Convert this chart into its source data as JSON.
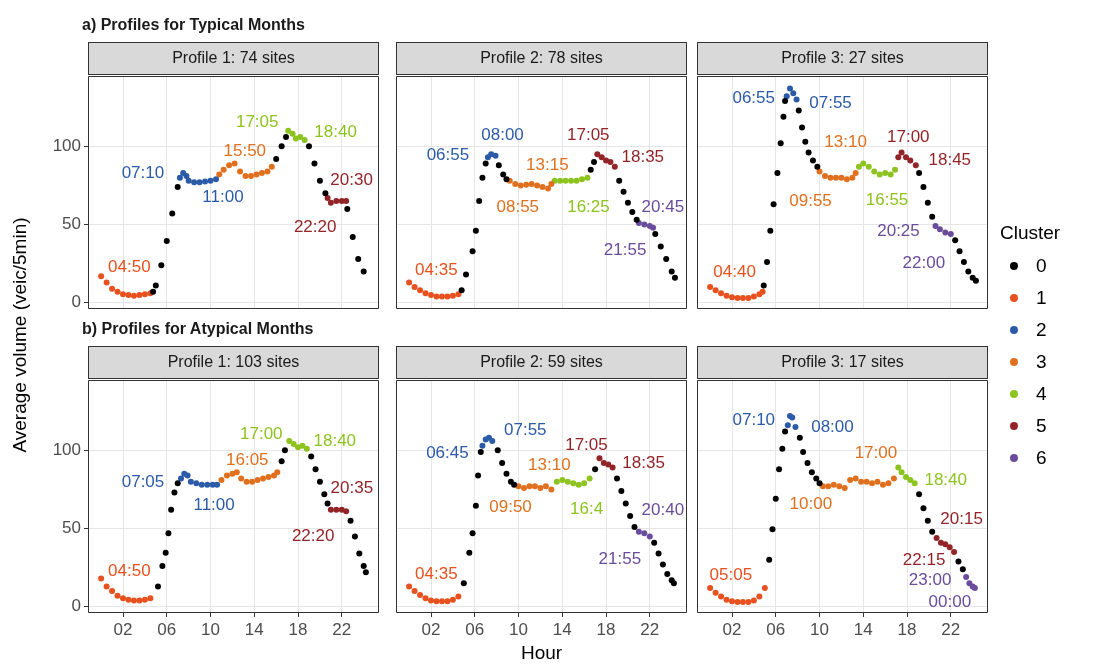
{
  "chart_data": [
    {
      "type": "scatter",
      "title": "Profile 1: 74 sites",
      "ylabel": "Average volume (veic/5min)",
      "annotations": [
        "a) Profiles for Typical Months",
        {
          "text": "04:50",
          "x": 4.5,
          "y": 6
        },
        {
          "text": "07:10",
          "x": 7.2,
          "y": 80
        },
        {
          "text": "11:00",
          "x": 10.5,
          "y": 79
        },
        {
          "text": "15:50",
          "x": 15.6,
          "y": 87
        },
        {
          "text": "17:05",
          "x": 17.1,
          "y": 110
        },
        {
          "text": "18:40",
          "x": 18.6,
          "y": 104
        },
        {
          "text": "20:30",
          "x": 20.7,
          "y": 67
        },
        {
          "text": "22:20",
          "x": 22.4,
          "y": 65
        }
      ],
      "xlim": [
        -1.2,
        25.4
      ],
      "ylim": [
        -4,
        145
      ],
      "xticks": [
        {
          "value": 2,
          "label": null
        },
        {
          "value": 6,
          "label": null
        },
        {
          "value": 10,
          "label": null
        },
        {
          "value": 14,
          "label": null
        },
        {
          "value": 18,
          "label": null
        },
        {
          "value": 22,
          "label": null
        }
      ],
      "yticks": [
        0,
        50,
        100
      ],
      "grid": true,
      "marker": "circle",
      "tick_labels": "y",
      "series": [
        {
          "color": "#000000",
          "x": [
            4.75,
            5,
            5.5,
            6,
            6.5,
            7,
            16,
            16.5,
            16.9,
            19,
            19.5,
            20,
            20.5,
            22.5,
            23,
            23.5,
            24
          ],
          "values": [
            7,
            11,
            24,
            39.5,
            57,
            74,
            92,
            100,
            106,
            100,
            89,
            78,
            70,
            60,
            42,
            28,
            20
          ]
        },
        {
          "color": "#e8501e",
          "x": [
            0,
            0.5,
            1,
            1.5,
            2,
            2.5,
            3,
            3.5,
            4,
            4.5
          ],
          "values": [
            17,
            13,
            9,
            7,
            5.5,
            5,
            4.5,
            5,
            5.5,
            6
          ]
        },
        {
          "color": "#2b5ba8",
          "x": [
            7.2,
            7.5,
            7.8,
            8,
            8.5,
            9,
            9.5,
            10,
            10.5
          ],
          "values": [
            80,
            83,
            81,
            78,
            77,
            77,
            77.5,
            78,
            79
          ]
        },
        {
          "color": "#e0701e",
          "x": [
            10.8,
            11.2,
            11.7,
            12.2,
            12.7,
            13.2,
            13.7,
            14.2,
            14.7,
            15.2,
            15.6
          ],
          "values": [
            82,
            85,
            88,
            89,
            84,
            81,
            81,
            82,
            83,
            84,
            87
          ]
        },
        {
          "color": "#8cc31e",
          "x": [
            17.1,
            17.5,
            17.8,
            18.2,
            18.6
          ],
          "values": [
            110,
            108,
            105,
            106,
            104
          ]
        },
        {
          "color": "#922428",
          "x": [
            20.7,
            21,
            21.5,
            22,
            22.4
          ],
          "values": [
            67,
            64,
            65,
            65,
            65
          ]
        }
      ]
    },
    {
      "type": "scatter",
      "title": "Profile 2: 78 sites",
      "annotations": [
        {
          "text": "04:35",
          "x": 4.5,
          "y": 5.5
        },
        {
          "text": "06:55",
          "x": 7.2,
          "y": 93
        },
        {
          "text": "08:00",
          "x": 7.9,
          "y": 94
        },
        {
          "text": "13:15",
          "x": 13,
          "y": 76
        },
        {
          "text": "08:55",
          "x": 9.2,
          "y": 78
        },
        {
          "text": "17:05",
          "x": 17.2,
          "y": 95
        },
        {
          "text": "18:35",
          "x": 18.8,
          "y": 87
        },
        {
          "text": "16:25",
          "x": 16.3,
          "y": 80
        },
        {
          "text": "20:45",
          "x": 21,
          "y": 51
        },
        {
          "text": "21:55",
          "x": 22.3,
          "y": 48
        }
      ],
      "xlim": [
        -1.2,
        25.4
      ],
      "ylim": [
        -4,
        145
      ],
      "xticks": [
        {
          "value": 2,
          "label": null
        },
        {
          "value": 6,
          "label": null
        },
        {
          "value": 10,
          "label": null
        },
        {
          "value": 14,
          "label": null
        },
        {
          "value": 18,
          "label": null
        },
        {
          "value": 22,
          "label": null
        }
      ],
      "yticks": [
        0,
        50,
        100
      ],
      "grid": true,
      "marker": "circle",
      "tick_labels": false,
      "series": [
        {
          "color": "#000000",
          "x": [
            4.8,
            5.2,
            5.8,
            6.1,
            6.4,
            6.7,
            7,
            8.2,
            8.6,
            8.9,
            16.6,
            16.9,
            19.2,
            19.6,
            20,
            20.4,
            20.8,
            22.5,
            23,
            23.5,
            24,
            24.3
          ],
          "values": [
            8,
            18,
            33,
            46,
            65,
            80,
            89,
            88,
            82,
            79,
            85,
            90,
            78,
            71,
            64,
            58,
            53,
            44,
            36,
            28,
            20,
            16
          ]
        },
        {
          "color": "#e8501e",
          "x": [
            0,
            0.5,
            1,
            1.5,
            2,
            2.5,
            3,
            3.5,
            4,
            4.5
          ],
          "values": [
            13,
            10,
            8,
            6,
            5,
            4,
            4,
            4,
            4.5,
            5.5
          ]
        },
        {
          "color": "#2b5ba8",
          "x": [
            7.2,
            7.5,
            7.9
          ],
          "values": [
            93,
            95,
            94
          ]
        },
        {
          "color": "#e0701e",
          "x": [
            9.2,
            9.7,
            10.2,
            10.7,
            11.2,
            11.7,
            12.2,
            12.7,
            13
          ],
          "values": [
            78,
            76,
            75,
            75.5,
            76,
            75,
            74,
            73,
            76
          ]
        },
        {
          "color": "#8cc31e",
          "x": [
            13.3,
            13.8,
            14.3,
            14.8,
            15.3,
            15.8,
            16.3
          ],
          "values": [
            78,
            78,
            78,
            78,
            78,
            79,
            80
          ]
        },
        {
          "color": "#922428",
          "x": [
            17.2,
            17.6,
            18,
            18.4,
            18.8
          ],
          "values": [
            95,
            93,
            91,
            90,
            87
          ]
        },
        {
          "color": "#6a4c9c",
          "x": [
            21,
            21.5,
            22,
            22.3
          ],
          "values": [
            51,
            50,
            49,
            48
          ]
        }
      ]
    },
    {
      "type": "scatter",
      "title": "Profile 3: 27 sites",
      "legend": "right",
      "legend_title": "Cluster",
      "annotations": [
        {
          "text": "04:40",
          "x": 4.8,
          "y": 7
        },
        {
          "text": "06:55",
          "x": 7,
          "y": 132
        },
        {
          "text": "07:55",
          "x": 7.9,
          "y": 130
        },
        {
          "text": "13:10",
          "x": 13.3,
          "y": 83
        },
        {
          "text": "09:55",
          "x": 10,
          "y": 84
        },
        {
          "text": "17:00",
          "x": 17.2,
          "y": 93
        },
        {
          "text": "18:45",
          "x": 18.8,
          "y": 88
        },
        {
          "text": "16:55",
          "x": 16.9,
          "y": 85
        },
        {
          "text": "20:25",
          "x": 20.6,
          "y": 49
        },
        {
          "text": "22:00",
          "x": 22,
          "y": 44
        }
      ],
      "xlim": [
        -1.2,
        25.4
      ],
      "ylim": [
        -4,
        145
      ],
      "xticks": [
        {
          "value": 2,
          "label": null
        },
        {
          "value": 6,
          "label": null
        },
        {
          "value": 10,
          "label": null
        },
        {
          "value": 14,
          "label": null
        },
        {
          "value": 18,
          "label": null
        },
        {
          "value": 22,
          "label": null
        }
      ],
      "yticks": [
        0,
        50,
        100
      ],
      "grid": true,
      "marker": "circle",
      "tick_labels": false,
      "series": [
        {
          "name": "0",
          "color": "#000000",
          "x": [
            4.9,
            5.2,
            5.5,
            5.8,
            6.15,
            6.45,
            6.7,
            6.85,
            8.1,
            8.4,
            8.7,
            9,
            9.4,
            9.8,
            19.1,
            19.5,
            19.9,
            20.3,
            22.4,
            22.8,
            23.2,
            23.6,
            24,
            24.3
          ],
          "values": [
            11,
            26,
            46,
            63,
            83,
            102,
            119,
            129,
            123,
            112,
            103,
            96,
            91,
            87,
            83,
            74,
            64,
            55,
            40,
            33,
            26,
            20,
            16,
            14
          ]
        },
        {
          "name": "1",
          "color": "#e8501e",
          "x": [
            0,
            0.5,
            1,
            1.5,
            2,
            2.5,
            3,
            3.5,
            4,
            4.5,
            4.8
          ],
          "values": [
            10,
            8,
            6,
            4.5,
            3.5,
            3,
            3,
            3,
            4,
            5.5,
            7
          ]
        },
        {
          "name": "2",
          "color": "#2b5ba8",
          "x": [
            7,
            7.3,
            7.6,
            7.9
          ],
          "values": [
            132,
            137,
            134,
            130
          ]
        },
        {
          "name": "3",
          "color": "#e0701e",
          "x": [
            10,
            10.5,
            11,
            11.5,
            12,
            12.5,
            13,
            13.3
          ],
          "values": [
            84,
            81,
            80,
            80,
            80,
            79,
            80,
            83
          ]
        },
        {
          "name": "4",
          "color": "#8cc31e",
          "x": [
            13.6,
            14,
            14.5,
            15,
            15.5,
            16,
            16.5,
            16.9
          ],
          "values": [
            87,
            89,
            87,
            84,
            82,
            83,
            82,
            85
          ]
        },
        {
          "name": "5",
          "color": "#922428",
          "x": [
            17.2,
            17.5,
            17.9,
            18.3,
            18.8
          ],
          "values": [
            93,
            96,
            93,
            91,
            88
          ]
        },
        {
          "name": "6",
          "color": "#6a4c9c",
          "x": [
            20.6,
            21,
            21.5,
            22
          ],
          "values": [
            49,
            47,
            45,
            44
          ]
        }
      ]
    },
    {
      "type": "scatter",
      "title": "Profile 1: 103 sites",
      "annotations": [
        "b) Profiles for Atypical Months",
        {
          "text": "04:50",
          "x": 4.5,
          "y": 5.5
        },
        {
          "text": "07:05",
          "x": 7.3,
          "y": 82
        },
        {
          "text": "11:00",
          "x": 10.6,
          "y": 78
        },
        {
          "text": "16:05",
          "x": 16.1,
          "y": 86
        },
        {
          "text": "17:00",
          "x": 17.2,
          "y": 106
        },
        {
          "text": "18:40",
          "x": 18.8,
          "y": 101
        },
        {
          "text": "20:35",
          "x": 21,
          "y": 62
        },
        {
          "text": "22:20",
          "x": 22.4,
          "y": 61
        }
      ],
      "xlim": [
        -1.2,
        25.4
      ],
      "ylim": [
        -4,
        145
      ],
      "xticks": [
        {
          "value": 2,
          "label": "02"
        },
        {
          "value": 6,
          "label": "06"
        },
        {
          "value": 10,
          "label": "10"
        },
        {
          "value": 14,
          "label": "14"
        },
        {
          "value": 18,
          "label": "18"
        },
        {
          "value": 22,
          "label": "22"
        }
      ],
      "yticks": [
        0,
        50,
        100
      ],
      "grid": true,
      "marker": "circle",
      "series": [
        {
          "color": "#000000",
          "x": [
            5.2,
            5.6,
            5.9,
            6.15,
            6.4,
            6.7,
            7,
            16.5,
            16.8,
            19.2,
            19.6,
            20,
            20.4,
            20.7,
            22.8,
            23.2,
            23.6,
            24,
            24.2
          ],
          "values": [
            13,
            26,
            34.5,
            47,
            62,
            73,
            79,
            93,
            100,
            96,
            88,
            80,
            72,
            66,
            55,
            45,
            34,
            26,
            22
          ]
        },
        {
          "color": "#e8501e",
          "x": [
            0,
            0.5,
            1,
            1.5,
            2,
            2.5,
            3,
            3.5,
            4,
            4.5
          ],
          "values": [
            18,
            13,
            10,
            7,
            5.5,
            4.5,
            4,
            4,
            4.5,
            5.5
          ]
        },
        {
          "color": "#2b5ba8",
          "x": [
            7.3,
            7.6,
            7.9,
            8.2,
            8.7,
            9.2,
            9.7,
            10.2,
            10.6
          ],
          "values": [
            82,
            85,
            84,
            80,
            79,
            78,
            78,
            78,
            78
          ]
        },
        {
          "color": "#e0701e",
          "x": [
            11,
            11.5,
            12,
            12.4,
            12.8,
            13.3,
            13.8,
            14.3,
            14.8,
            15.3,
            15.8,
            16.1
          ],
          "values": [
            81,
            84,
            85,
            86,
            82,
            80,
            80,
            81,
            82,
            83,
            84,
            86
          ]
        },
        {
          "color": "#8cc31e",
          "x": [
            17.2,
            17.6,
            18,
            18.4,
            18.8
          ],
          "values": [
            106,
            104,
            102,
            103,
            101
          ]
        },
        {
          "color": "#922428",
          "x": [
            21,
            21.5,
            22,
            22.4
          ],
          "values": [
            62,
            62,
            62,
            61
          ]
        }
      ]
    },
    {
      "type": "scatter",
      "title": "Profile 2: 59 sites",
      "xlabel": "Hour",
      "annotations": [
        {
          "text": "04:35",
          "x": 4.5,
          "y": 6.5
        },
        {
          "text": "06:45",
          "x": 6.7,
          "y": 103
        },
        {
          "text": "07:55",
          "x": 7.6,
          "y": 106
        },
        {
          "text": "13:10",
          "x": 13,
          "y": 75
        },
        {
          "text": "09:50",
          "x": 10,
          "y": 77
        },
        {
          "text": "17:05",
          "x": 17.4,
          "y": 95
        },
        {
          "text": "18:35",
          "x": 18.6,
          "y": 89
        },
        {
          "text": "16:4",
          "x": 16.5,
          "y": 82
        },
        {
          "text": "20:40",
          "x": 21,
          "y": 48
        },
        {
          "text": "21:55",
          "x": 22,
          "y": 45
        }
      ],
      "xlim": [
        -1.2,
        25.4
      ],
      "ylim": [
        -4,
        145
      ],
      "xticks": [
        {
          "value": 2,
          "label": "02"
        },
        {
          "value": 6,
          "label": "06"
        },
        {
          "value": 10,
          "label": "10"
        },
        {
          "value": 14,
          "label": "14"
        },
        {
          "value": 18,
          "label": "18"
        },
        {
          "value": 22,
          "label": "22"
        }
      ],
      "yticks": [
        0,
        50,
        100
      ],
      "grid": true,
      "marker": "circle",
      "tick_labels": "x",
      "series": [
        {
          "color": "#000000",
          "x": [
            5,
            5.5,
            5.8,
            6.1,
            6.3,
            6.55,
            8.1,
            8.5,
            8.9,
            9.3,
            9.6,
            17,
            19,
            19.4,
            19.8,
            20.2,
            20.6,
            22.4,
            22.8,
            23.2,
            23.6,
            24,
            24.2
          ],
          "values": [
            15,
            34.5,
            47,
            64.6,
            84,
            99,
            100,
            92,
            85,
            80,
            78,
            88,
            82,
            74,
            66,
            58,
            51,
            41,
            34,
            27,
            21,
            17,
            15
          ]
        },
        {
          "color": "#e8501e",
          "x": [
            0,
            0.5,
            1,
            1.5,
            2,
            2.5,
            3,
            3.5,
            4,
            4.5
          ],
          "values": [
            13,
            10,
            7.5,
            5.5,
            4,
            3.5,
            3.5,
            3.5,
            4.5,
            6.5
          ]
        },
        {
          "color": "#2b5ba8",
          "x": [
            6.7,
            7,
            7.3,
            7.6
          ],
          "values": [
            103,
            107,
            108,
            106
          ]
        },
        {
          "color": "#e0701e",
          "x": [
            10,
            10.5,
            11,
            11.5,
            12,
            12.5,
            13
          ],
          "values": [
            77,
            76,
            77,
            77,
            76,
            77,
            75
          ]
        },
        {
          "color": "#8cc31e",
          "x": [
            13.5,
            14,
            14.5,
            15,
            15.5,
            16,
            16.5
          ],
          "values": [
            80,
            81,
            80,
            79,
            78,
            79,
            82
          ]
        },
        {
          "color": "#922428",
          "x": [
            17.4,
            17.8,
            18.2,
            18.6
          ],
          "values": [
            95,
            92,
            91,
            89
          ]
        },
        {
          "color": "#6a4c9c",
          "x": [
            21,
            21.5,
            22
          ],
          "values": [
            48,
            47,
            45
          ]
        }
      ]
    },
    {
      "type": "scatter",
      "title": "Profile 3: 17 sites",
      "annotations": [
        {
          "text": "05:05",
          "x": 5,
          "y": 12
        },
        {
          "text": "07:10",
          "x": 7.1,
          "y": 116
        },
        {
          "text": "08:00",
          "x": 7.8,
          "y": 115
        },
        {
          "text": "17:00",
          "x": 16.8,
          "y": 82
        },
        {
          "text": "10:00",
          "x": 10.3,
          "y": 77
        },
        {
          "text": "18:40",
          "x": 18.7,
          "y": 79
        },
        {
          "text": "20:15",
          "x": 20.7,
          "y": 44
        },
        {
          "text": "22:15",
          "x": 22.3,
          "y": 35
        },
        {
          "text": "23:00",
          "x": 23.4,
          "y": 19
        },
        {
          "text": "00:00",
          "x": 24.2,
          "y": 12
        }
      ],
      "xlim": [
        -1.2,
        25.4
      ],
      "ylim": [
        -4,
        145
      ],
      "xticks": [
        {
          "value": 2,
          "label": "02"
        },
        {
          "value": 6,
          "label": "06"
        },
        {
          "value": 10,
          "label": "10"
        },
        {
          "value": 14,
          "label": "14"
        },
        {
          "value": 18,
          "label": "18"
        },
        {
          "value": 22,
          "label": "22"
        }
      ],
      "yticks": [
        0,
        50,
        100
      ],
      "grid": true,
      "marker": "circle",
      "tick_labels": "x",
      "series": [
        {
          "color": "#000000",
          "x": [
            5.4,
            5.7,
            6,
            6.3,
            6.6,
            6.85,
            8.2,
            8.5,
            8.9,
            9.3,
            9.7,
            10,
            19.1,
            19.5,
            19.9,
            20.3,
            22.7,
            23.1
          ],
          "values": [
            30,
            49.5,
            69,
            88,
            101,
            112,
            108,
            99,
            92,
            86,
            82,
            79,
            72,
            63,
            55,
            48,
            29,
            24
          ]
        },
        {
          "color": "#e8501e",
          "x": [
            0,
            0.5,
            1,
            1.5,
            2,
            2.5,
            3,
            3.5,
            4,
            4.5,
            5
          ],
          "values": [
            12,
            9,
            6.5,
            4.5,
            3.5,
            3,
            3,
            3,
            4,
            6.5,
            12
          ]
        },
        {
          "color": "#2b5ba8",
          "x": [
            7.1,
            7.3,
            7.5,
            7.8
          ],
          "values": [
            116,
            122,
            121,
            115
          ]
        },
        {
          "color": "#e0701e",
          "x": [
            10.3,
            10.8,
            11.3,
            11.8,
            12.3,
            12.8,
            13.3,
            13.8,
            14.3,
            14.8,
            15.3,
            15.8,
            16.3,
            16.8
          ],
          "values": [
            77,
            77,
            78,
            77,
            76,
            81,
            82,
            80,
            80,
            79,
            80,
            78,
            79,
            82
          ]
        },
        {
          "color": "#8cc31e",
          "x": [
            17.2,
            17.5,
            17.9,
            18.3,
            18.7
          ],
          "values": [
            89,
            86,
            83,
            81,
            79
          ]
        },
        {
          "color": "#922428",
          "x": [
            20.7,
            21.1,
            21.5,
            21.9,
            22.3
          ],
          "values": [
            44,
            41,
            40,
            38,
            35
          ]
        },
        {
          "color": "#6a4c9c",
          "x": [
            23.4,
            23.7,
            24,
            24.2
          ],
          "values": [
            19,
            15,
            13,
            12
          ]
        }
      ]
    }
  ]
}
